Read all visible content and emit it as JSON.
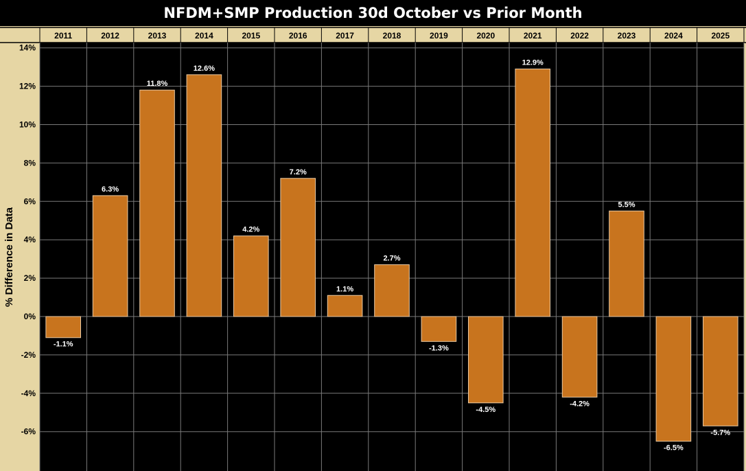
{
  "chart_data": {
    "type": "bar",
    "title": "NFDM+SMP Production 30d October vs Prior Month",
    "xlabel": "",
    "ylabel": "% Difference in Data",
    "categories": [
      "2011",
      "2012",
      "2013",
      "2014",
      "2015",
      "2016",
      "2017",
      "2018",
      "2019",
      "2020",
      "2021",
      "2022",
      "2023",
      "2024",
      "2025"
    ],
    "values": [
      -1.1,
      6.3,
      11.8,
      12.6,
      4.2,
      7.2,
      1.1,
      2.7,
      -1.3,
      -4.5,
      12.9,
      -4.2,
      5.5,
      -6.5,
      -5.7
    ],
    "value_labels": [
      "-1.1%",
      "6.3%",
      "11.8%",
      "12.6%",
      "4.2%",
      "7.2%",
      "1.1%",
      "2.7%",
      "-1.3%",
      "-4.5%",
      "12.9%",
      "-4.2%",
      "5.5%",
      "-6.5%",
      "-5.7%"
    ],
    "ylim": [
      -8,
      14
    ],
    "yticks": [
      -6,
      -4,
      -2,
      0,
      2,
      4,
      6,
      8,
      10,
      12,
      14
    ],
    "ytick_labels": [
      "-6%",
      "-4%",
      "-2%",
      "0%",
      "2%",
      "4%",
      "6%",
      "8%",
      "10%",
      "12%",
      "14%"
    ],
    "grid": true,
    "legend": "none",
    "colors": {
      "bar": "#c8741e",
      "bar_edge": "#e8c9a3",
      "plot_bg": "#000000",
      "panel_bg": "#e6d6a4",
      "grid": "#7a7a7a",
      "value_label": "#ffffff"
    }
  }
}
